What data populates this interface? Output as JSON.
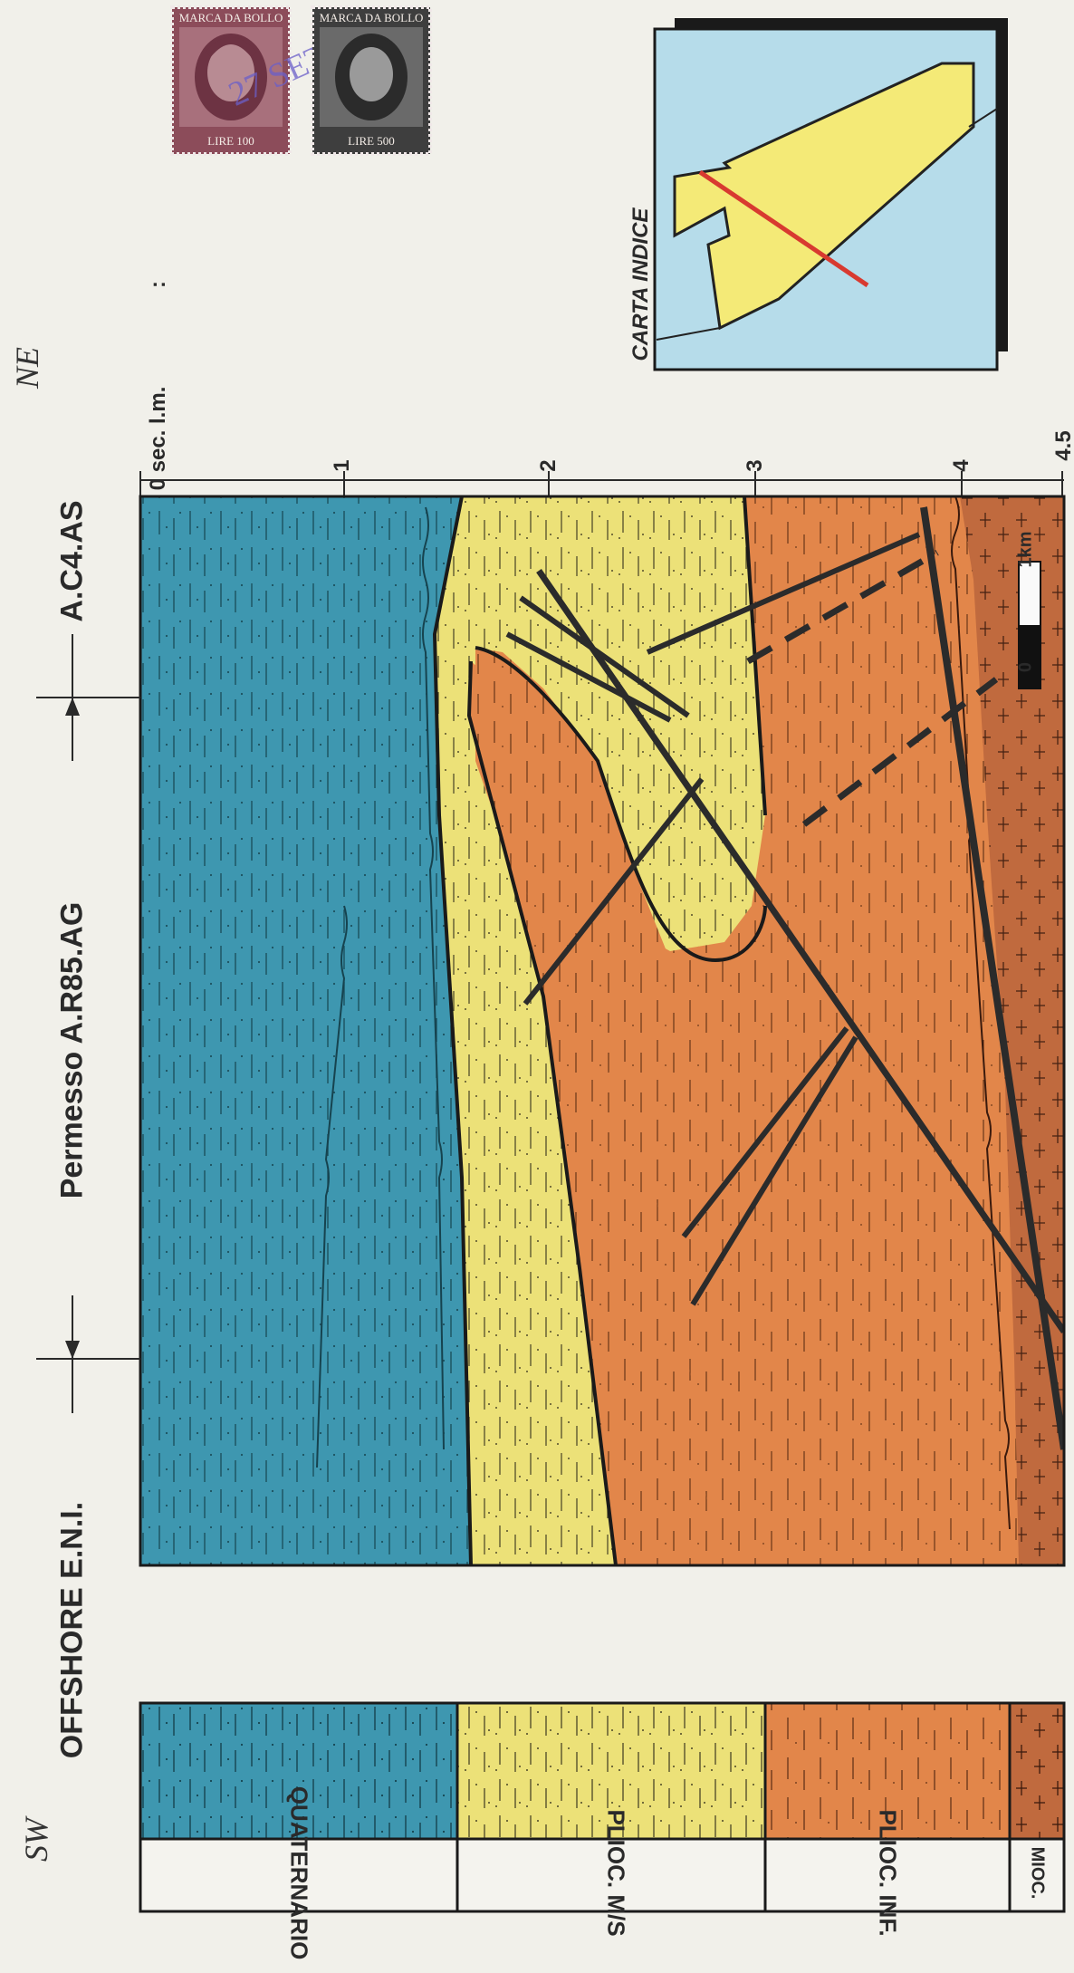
{
  "title": "Permesso A.R85.AG",
  "orientation": {
    "left": "SW",
    "right": "NE"
  },
  "wells": [
    {
      "label": "OFFSHORE E.N.I."
    },
    {
      "label": "A.C4.AS"
    }
  ],
  "time_scale": {
    "unit_label": "0 sec. l.m.",
    "ticks": [
      "1",
      "2",
      "3",
      "4",
      "4.5"
    ]
  },
  "scale_bar": {
    "start": "0",
    "end": "1km"
  },
  "index_map": {
    "title": "CARTA INDICE"
  },
  "stamps": [
    {
      "header": "MARCA DA BOLLO",
      "value": "LIRE 100",
      "date": "27 SET"
    },
    {
      "header": "MARCA DA BOLLO",
      "value": "LIRE 500"
    }
  ],
  "legend": [
    {
      "label": "QUATERNARIO",
      "color": "#3e97b0"
    },
    {
      "label": "PLIOC. M/S",
      "color": "#ece178"
    },
    {
      "label": "PLIOC. INF.",
      "color": "#e2864a"
    },
    {
      "label": "MIOC.",
      "color": "#c06a3e"
    }
  ],
  "misc": {
    "colon_mark": ":"
  }
}
